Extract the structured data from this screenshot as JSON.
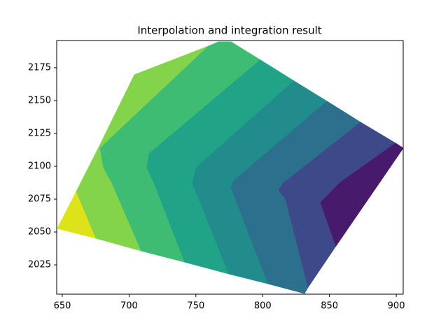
{
  "chart_data": {
    "type": "contourf",
    "title": "Interpolation and integration result",
    "xlim": [
      645.8,
      905.2
    ],
    "ylim": [
      2002.7,
      2195.7
    ],
    "xticks": [
      650,
      700,
      750,
      800,
      850,
      900
    ],
    "yticks": [
      2025,
      2050,
      2075,
      2100,
      2125,
      2150,
      2175
    ],
    "regions": [
      {
        "color": "#dde318",
        "x": [
          646.3,
          660.5,
          675.2
        ],
        "y": [
          2052.7,
          2080.9,
          2045.2
        ]
      },
      {
        "color": "#84d44b",
        "x": [
          660.5,
          676.7,
          704.0,
          759.5,
          678.3,
          680.9,
          687.2,
          709.2,
          675.2
        ],
        "y": [
          2080.9,
          2113.3,
          2169.7,
          2191.5,
          2113.8,
          2098.9,
          2087.2,
          2035.6,
          2045.2
        ]
      },
      {
        "color": "#3fbc73",
        "x": [
          759.5,
          766.9,
          776.3,
          798.3,
          715.0,
          713.4,
          718.7,
          741.7,
          709.2,
          687.2,
          680.9,
          678.3
        ],
        "y": [
          2191.5,
          2194.7,
          2194.7,
          2180.9,
          2109.6,
          2098.9,
          2087.2,
          2027.1,
          2035.6,
          2087.2,
          2098.9,
          2113.8
        ]
      },
      {
        "color": "#20a386",
        "x": [
          798.3,
          823.5,
          750.1,
          747.5,
          774.7,
          741.7,
          718.7,
          713.4,
          715.0
        ],
        "y": [
          2180.9,
          2164.9,
          2098.9,
          2087.2,
          2018.1,
          2027.1,
          2087.2,
          2098.9,
          2109.6
        ]
      },
      {
        "color": "#228c8d",
        "x": [
          823.5,
          848.1,
          778.9,
          776.3,
          804.1,
          774.7,
          747.5,
          750.1
        ],
        "y": [
          2164.9,
          2149.5,
          2089.4,
          2084.0,
          2010.6,
          2018.1,
          2087.2,
          2098.9
        ]
      },
      {
        "color": "#2d708e",
        "x": [
          848.1,
          873.3,
          815.6,
          812.0,
          817.2,
          834.0,
          831.3,
          804.1,
          776.3,
          778.9
        ],
        "y": [
          2149.5,
          2133.5,
          2087.2,
          2081.9,
          2075.0,
          2008.0,
          2003.2,
          2010.6,
          2084.0,
          2089.4
        ]
      },
      {
        "color": "#3e4989",
        "x": [
          873.3,
          899.5,
          857.5,
          843.4,
          854.9,
          834.0,
          817.2,
          812.0,
          815.6
        ],
        "y": [
          2133.5,
          2117.6,
          2087.2,
          2072.3,
          2039.4,
          2008.0,
          2075.0,
          2081.9,
          2087.2
        ]
      },
      {
        "color": "#481a6c",
        "x": [
          899.5,
          905.2,
          854.9,
          843.4,
          857.5
        ],
        "y": [
          2117.6,
          2113.8,
          2039.4,
          2072.3,
          2087.2
        ]
      }
    ]
  }
}
